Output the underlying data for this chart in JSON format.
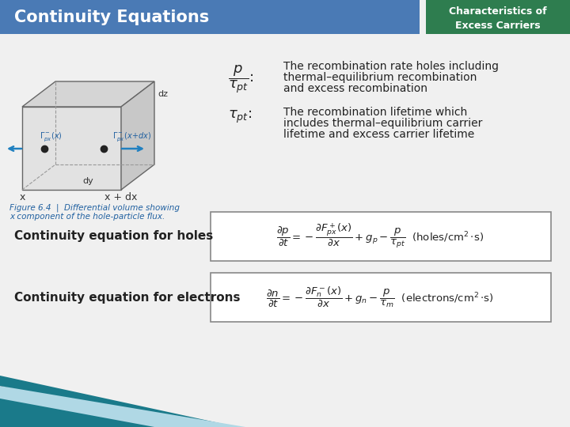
{
  "title_left": "Continuity Equations",
  "title_right_line1": "Characteristics of",
  "title_right_line2": "Excess Carriers",
  "title_left_bg": "#4a7ab5",
  "title_right_bg": "#2e7d4f",
  "bg_color": "#f0f0f0",
  "text_color": "#222222",
  "label1_desc1": "The recombination rate holes including",
  "label1_desc2": "thermal–equilibrium recombination",
  "label1_desc3": "and excess recombination",
  "label2_desc1": "The recombination lifetime which",
  "label2_desc2": "includes thermal–equilibrium carrier",
  "label2_desc3": "lifetime and excess carrier lifetime",
  "eq_holes_label": "Continuity equation for holes",
  "eq_electrons_label": "Continuity equation for electrons",
  "fig_caption1": "Figure 6.4  |  Differential volume showing",
  "fig_caption2": "x component of the hole-particle flux.",
  "fig_caption_color": "#2060a0"
}
